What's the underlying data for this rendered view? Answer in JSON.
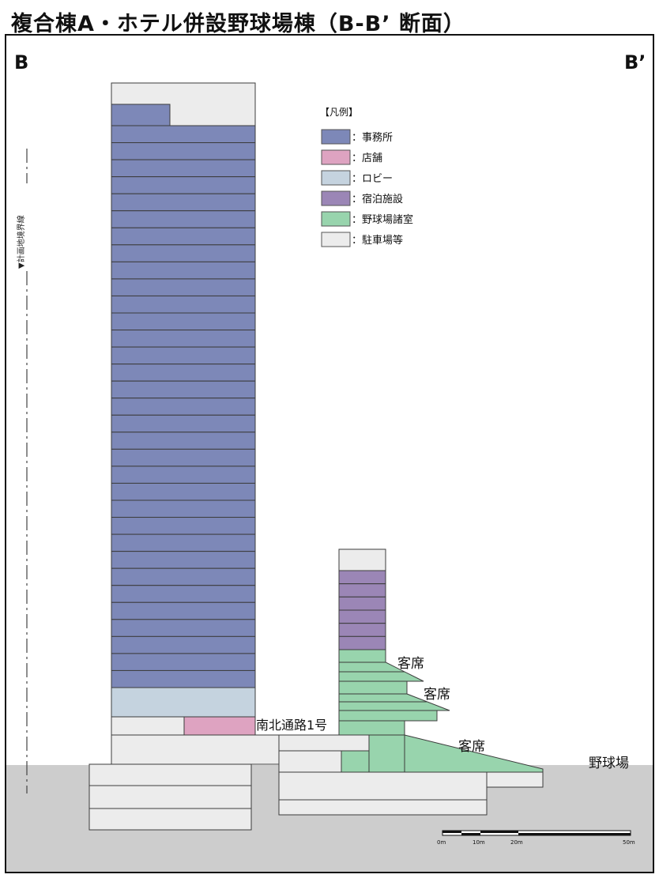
{
  "title": "複合棟A・ホテル併設野球場棟（B-B’ 断面）",
  "labels": {
    "left_marker": "B",
    "right_marker": "B’",
    "boundary_line": "▼計画地境界線",
    "passage": "南北通路1号",
    "seat_1": "客席",
    "seat_2": "客席",
    "seat_3": "客席",
    "ballpark": "野球場"
  },
  "legend": {
    "title": "【凡例】",
    "items": [
      {
        "label": "：事務所",
        "color": "#7d88b8"
      },
      {
        "label": "：店舗",
        "color": "#dea3c1"
      },
      {
        "label": "：ロビー",
        "color": "#c5d3df"
      },
      {
        "label": "：宿泊施設",
        "color": "#9b86b6"
      },
      {
        "label": "：野球場諸室",
        "color": "#98d4ad"
      },
      {
        "label": "：駐車場等",
        "color": "#ececec"
      }
    ]
  },
  "scale_bar": {
    "ticks": [
      "0m",
      "10m",
      "20m",
      "50m"
    ]
  },
  "colors": {
    "office": "#7d88b8",
    "shop": "#dea3c1",
    "lobby": "#c5d3df",
    "hotel": "#9b86b6",
    "ballpark_rooms": "#98d4ad",
    "parking": "#ececec",
    "ground": "#cdcdcd",
    "outline": "#3c3c3c"
  }
}
